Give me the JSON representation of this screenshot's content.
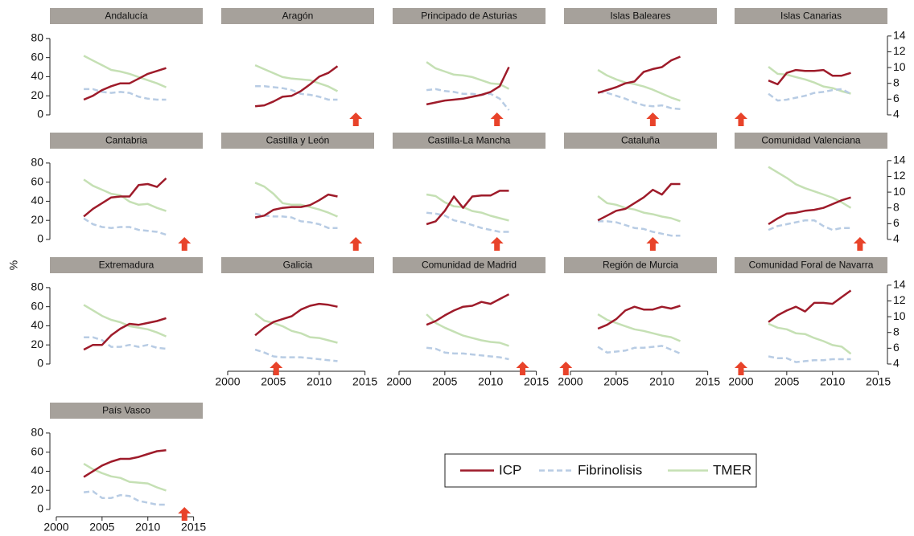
{
  "chart_data": {
    "type": "line",
    "y_label": "%",
    "x": [
      2003,
      2004,
      2005,
      2006,
      2007,
      2008,
      2009,
      2010,
      2011,
      2012
    ],
    "xlim": [
      1999.3,
      2016
    ],
    "xticks": [
      2000,
      2005,
      2010,
      2015
    ],
    "ylim": [
      -7.6,
      90
    ],
    "yticks": [
      0,
      20,
      40,
      60,
      80
    ],
    "y2lim": [
      3.08,
      14.9
    ],
    "y2ticks": [
      4,
      6,
      8,
      10,
      12,
      14
    ],
    "series": [
      {
        "name": "ICP",
        "color": "#9e1b2a",
        "dash": false,
        "axis": "y"
      },
      {
        "name": "Fibrinolisis",
        "color": "#b8cce4",
        "dash": true,
        "axis": "y"
      },
      {
        "name": "TMER",
        "color": "#c5e0b4",
        "dash": false,
        "axis": "y2"
      }
    ],
    "marker_color": "#e8432a",
    "panels": [
      {
        "title": "Andalucía",
        "arrow_year": null,
        "series": [
          [
            16,
            20,
            26,
            30,
            33,
            33,
            38,
            43,
            46,
            49
          ],
          [
            27,
            27,
            24,
            23,
            24,
            23,
            19,
            17,
            16,
            16
          ],
          [
            11.5,
            10.9,
            10.3,
            9.7,
            9.5,
            9.2,
            8.8,
            8.4,
            8.0,
            7.5
          ]
        ]
      },
      {
        "title": "Aragón",
        "arrow_year": 2014,
        "series": [
          [
            9,
            10,
            14,
            19,
            20,
            25,
            32,
            40,
            44,
            51
          ],
          [
            30,
            30,
            29,
            28,
            26,
            22,
            21,
            19,
            16,
            16
          ],
          [
            10.3,
            9.8,
            9.3,
            8.8,
            8.6,
            8.5,
            8.4,
            8.0,
            7.6,
            7.0
          ]
        ]
      },
      {
        "title": "Principado de  Asturias",
        "arrow_year": 2010.7,
        "series": [
          [
            11,
            13,
            15,
            16,
            17,
            19,
            21,
            24,
            30,
            50
          ],
          [
            26,
            27,
            25,
            24,
            22,
            22,
            21,
            22,
            17,
            5
          ],
          [
            10.7,
            9.9,
            9.5,
            9.1,
            9.0,
            8.8,
            8.4,
            8.0,
            7.9,
            7.3
          ]
        ]
      },
      {
        "title": "Islas Baleares",
        "arrow_year": 2009,
        "series": [
          [
            23,
            26,
            29,
            33,
            35,
            45,
            48,
            50,
            57,
            61
          ],
          [
            24,
            23,
            20,
            17,
            13,
            10,
            9,
            10,
            7,
            6
          ],
          [
            9.7,
            9.0,
            8.5,
            8.1,
            7.9,
            7.6,
            7.2,
            6.7,
            6.2,
            5.8
          ]
        ]
      },
      {
        "title": "Islas Canarias",
        "arrow_year": 2000,
        "series": [
          [
            36,
            32,
            44,
            47,
            46,
            46,
            47,
            41,
            41,
            44
          ],
          [
            22,
            15,
            16,
            18,
            20,
            23,
            24,
            26,
            27,
            22
          ],
          [
            10.1,
            9.2,
            9.1,
            8.8,
            8.5,
            8.1,
            7.6,
            7.4,
            7.0,
            6.7
          ]
        ]
      },
      {
        "title": "Cantabria",
        "arrow_year": 2014,
        "series": [
          [
            24,
            32,
            38,
            44,
            45,
            45,
            57,
            58,
            55,
            64
          ],
          [
            22,
            16,
            13,
            12,
            13,
            13,
            10,
            9,
            8,
            5
          ],
          [
            11.6,
            10.8,
            10.3,
            9.8,
            9.6,
            8.8,
            8.4,
            8.5,
            8.0,
            7.6
          ]
        ]
      },
      {
        "title": "Castilla y León",
        "arrow_year": 2014,
        "series": [
          [
            23,
            25,
            31,
            33,
            34,
            34,
            36,
            41,
            47,
            45
          ],
          [
            27,
            25,
            24,
            24,
            23,
            19,
            18,
            16,
            12,
            12
          ],
          [
            11.2,
            10.7,
            9.8,
            8.6,
            8.4,
            8.4,
            8.1,
            7.8,
            7.4,
            6.9
          ]
        ]
      },
      {
        "title": "Castilla-La Mancha",
        "arrow_year": 2010.7,
        "series": [
          [
            16,
            19,
            30,
            45,
            33,
            45,
            46,
            46,
            51,
            51
          ],
          [
            28,
            27,
            25,
            20,
            18,
            15,
            12,
            10,
            8,
            8
          ],
          [
            9.7,
            9.5,
            8.7,
            8.2,
            8.1,
            7.6,
            7.4,
            7.0,
            6.7,
            6.4
          ]
        ]
      },
      {
        "title": "Cataluña",
        "arrow_year": 2009,
        "series": [
          [
            20,
            25,
            30,
            32,
            38,
            44,
            52,
            47,
            58,
            58
          ],
          [
            19,
            19,
            18,
            15,
            12,
            11,
            8,
            6,
            4,
            4
          ],
          [
            9.5,
            8.6,
            8.4,
            8.0,
            7.8,
            7.4,
            7.2,
            6.9,
            6.7,
            6.3
          ]
        ]
      },
      {
        "title": "Comunidad Valenciana",
        "arrow_year": 2013,
        "series": [
          [
            16,
            22,
            27,
            28,
            30,
            31,
            33,
            37,
            41,
            44
          ],
          [
            10,
            14,
            16,
            18,
            20,
            20,
            14,
            10,
            12,
            12
          ],
          [
            13.2,
            12.5,
            11.8,
            11.0,
            10.5,
            10.1,
            9.7,
            9.3,
            8.7,
            8.0
          ]
        ]
      },
      {
        "title": "Extremadura",
        "arrow_year": null,
        "series": [
          [
            15,
            20,
            20,
            30,
            37,
            42,
            41,
            43,
            45,
            48
          ],
          [
            28,
            28,
            25,
            18,
            18,
            20,
            18,
            20,
            17,
            16
          ],
          [
            11.5,
            10.8,
            10.1,
            9.6,
            9.3,
            8.8,
            8.6,
            8.4,
            8.0,
            7.5
          ]
        ]
      },
      {
        "title": "Galicia",
        "arrow_year": 2005.3,
        "series": [
          [
            30,
            38,
            44,
            47,
            50,
            57,
            61,
            63,
            62,
            60
          ],
          [
            15,
            12,
            8,
            7,
            7,
            7,
            6,
            5,
            4,
            3
          ],
          [
            10.4,
            9.5,
            9.2,
            8.8,
            8.2,
            7.9,
            7.4,
            7.3,
            7.0,
            6.7
          ]
        ]
      },
      {
        "title": "Comunidad de Madrid",
        "arrow_year": 2013.5,
        "series": [
          [
            41,
            45,
            51,
            56,
            60,
            61,
            65,
            63,
            68,
            73
          ],
          [
            17,
            16,
            12,
            11,
            11,
            10,
            9,
            8,
            7,
            5
          ],
          [
            10.3,
            9.2,
            8.6,
            8.1,
            7.6,
            7.3,
            7.0,
            6.8,
            6.7,
            6.3
          ]
        ]
      },
      {
        "title": "Región de Murcia",
        "arrow_year": 1999.5,
        "series": [
          [
            37,
            41,
            47,
            56,
            60,
            57,
            57,
            60,
            58,
            61
          ],
          [
            18,
            12,
            13,
            14,
            17,
            17,
            18,
            19,
            15,
            11
          ],
          [
            10.3,
            9.6,
            9.2,
            8.8,
            8.4,
            8.2,
            7.9,
            7.6,
            7.4,
            6.9
          ]
        ]
      },
      {
        "title": "Comunidad Foral de Navarra",
        "arrow_year": 2000,
        "series": [
          [
            44,
            51,
            56,
            60,
            55,
            64,
            64,
            63,
            70,
            77
          ],
          [
            8,
            6,
            6,
            2,
            3,
            4,
            4,
            5,
            5,
            5
          ],
          [
            9.1,
            8.6,
            8.4,
            7.9,
            7.8,
            7.3,
            6.9,
            6.4,
            6.2,
            5.3
          ]
        ]
      },
      {
        "title": "País Vasco",
        "arrow_year": 2014,
        "series": [
          [
            34,
            40,
            46,
            50,
            53,
            53,
            55,
            58,
            61,
            62
          ],
          [
            18,
            19,
            12,
            12,
            15,
            14,
            9,
            7,
            5,
            5
          ],
          [
            9.8,
            9.1,
            8.6,
            8.2,
            8.0,
            7.5,
            7.4,
            7.3,
            6.8,
            6.4
          ]
        ]
      }
    ]
  }
}
